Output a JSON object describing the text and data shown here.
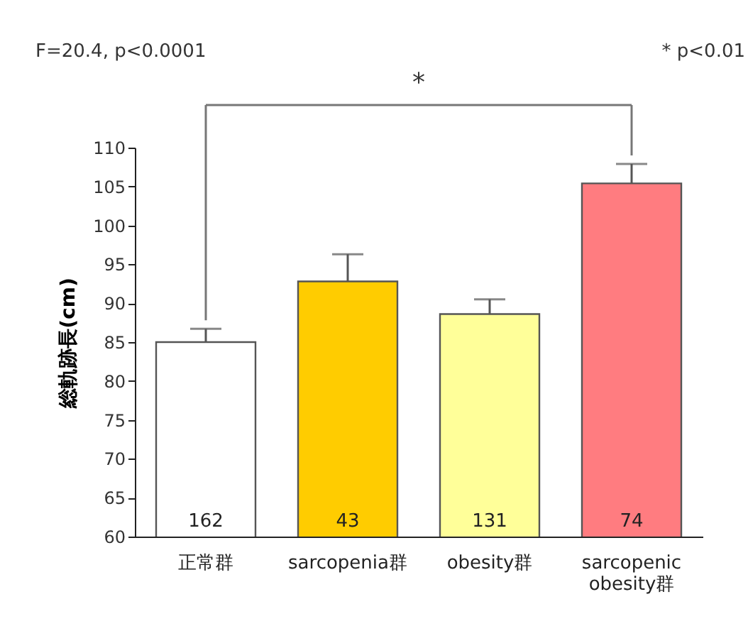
{
  "chart_data": {
    "type": "bar",
    "ylabel": "総軌跡長(cm)",
    "categories": [
      "正常群",
      "sarcopenia群",
      "obesity群",
      "sarcopenic obesity群"
    ],
    "values": [
      85.0,
      92.8,
      88.6,
      105.4
    ],
    "colors": [
      "#ffffff",
      "#ffcc00",
      "#ffff99",
      "#ff7c80"
    ],
    "errors": [
      [
        85.0,
        86.7
      ],
      [
        92.8,
        96.3
      ],
      [
        88.6,
        90.5
      ],
      [
        105.4,
        107.9
      ]
    ],
    "ylim": [
      60,
      110
    ],
    "yticks": [
      60,
      65,
      70,
      75,
      80,
      85,
      90,
      95,
      100,
      105,
      110
    ],
    "grid": false,
    "annotations": [
      "F=20.4, p<0.0001",
      "* p<0.01",
      "*",
      "162",
      "43",
      "131",
      "74"
    ]
  }
}
